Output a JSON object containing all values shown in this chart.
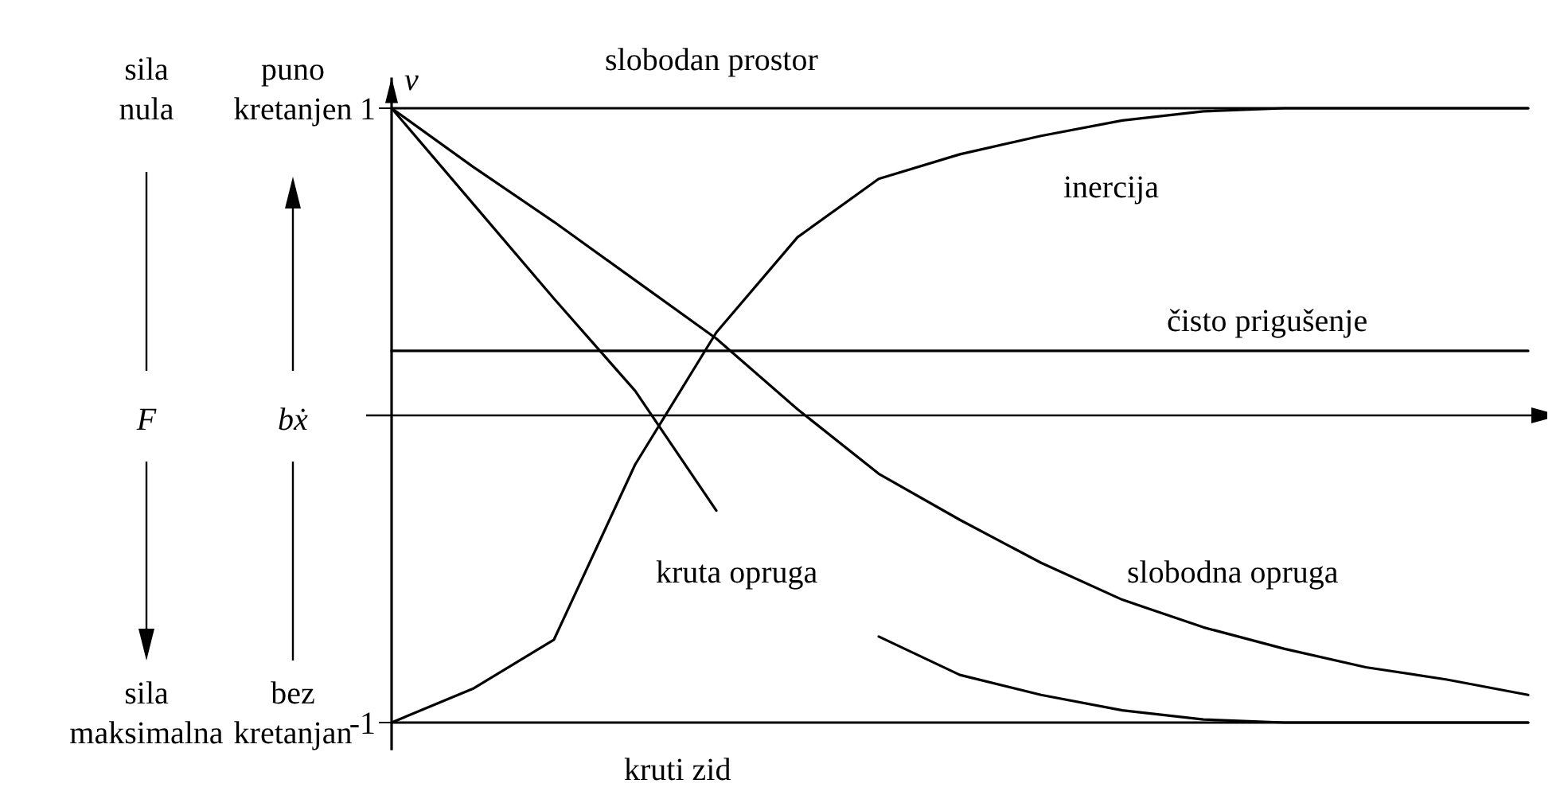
{
  "chart_data": {
    "type": "line",
    "ylabel": "v",
    "categories": [
      null,
      null,
      null,
      null,
      null,
      null,
      null,
      null,
      null,
      null,
      null,
      null,
      null,
      null,
      null
    ],
    "ylim": [
      -1.09,
      1.1
    ],
    "yticks": [
      -1,
      1
    ],
    "tick_labels": "y",
    "grid": false,
    "line_style": "solid",
    "marker": "none",
    "series": [
      {
        "name": "slobodan prostor",
        "color": "#000000",
        "values": [
          1,
          1,
          1,
          1,
          1,
          1,
          1,
          1,
          1,
          1,
          1,
          1,
          1,
          1,
          1
        ]
      },
      {
        "name": "inercija",
        "color": "#000000",
        "values": [
          -1,
          -0.89,
          -0.73,
          -0.16,
          0.27,
          0.58,
          0.77,
          0.85,
          0.91,
          0.96,
          0.99,
          1,
          1,
          1,
          1
        ]
      },
      {
        "name": "čisto prigušenje",
        "color": "#000000",
        "values": [
          0.21,
          0.21,
          0.21,
          0.21,
          0.21,
          0.21,
          0.21,
          0.21,
          0.21,
          0.21,
          0.21,
          0.21,
          0.21,
          0.21,
          0.21
        ]
      },
      {
        "name": "kruta opruga",
        "color": "#000000",
        "values": [
          1,
          0.69,
          0.38,
          0.08,
          -0.31,
          null,
          -0.72,
          -0.845,
          -0.91,
          -0.96,
          -0.99,
          -1,
          -1,
          -1,
          -1
        ]
      },
      {
        "name": "slobodna opruga",
        "color": "#000000",
        "values": [
          1,
          0.81,
          0.63,
          0.44,
          0.25,
          0.02,
          -0.19,
          -0.34,
          -0.48,
          -0.6,
          -0.69,
          -0.76,
          -0.82,
          -0.86,
          -0.91
        ]
      },
      {
        "name": "kruti zid",
        "color": "#000000",
        "values": [
          -1,
          -1,
          -1,
          -1,
          -1,
          -1,
          -1,
          -1,
          -1,
          -1,
          -1,
          -1,
          -1,
          -1,
          -1
        ]
      }
    ],
    "annotations": [
      "sila nula",
      "F",
      "sila maksimalna",
      "puno kretanjen",
      "bẋ",
      "bez kretanjan"
    ]
  }
}
